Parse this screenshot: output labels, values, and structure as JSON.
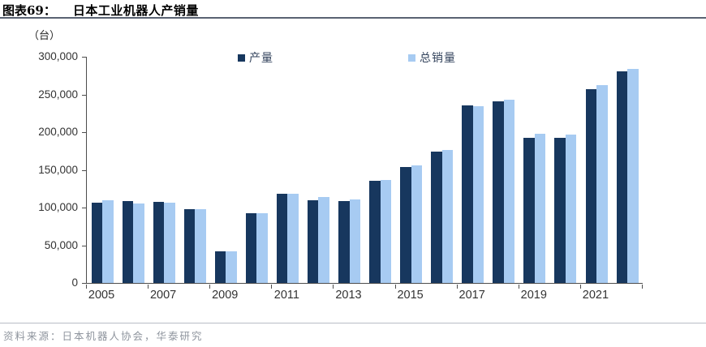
{
  "header": {
    "figure_label": "图表69：",
    "figure_title": "日本工业机器人产销量"
  },
  "chart": {
    "unit_label": "（台）"
  },
  "chart_data": {
    "type": "bar",
    "title": "日本工业机器人产销量",
    "unit": "台",
    "categories": [
      2005,
      2006,
      2007,
      2008,
      2009,
      2010,
      2011,
      2012,
      2013,
      2014,
      2015,
      2016,
      2017,
      2018,
      2019,
      2020,
      2021,
      2022
    ],
    "series": [
      {
        "name": "产量",
        "color": "#17375E",
        "values": [
          107000,
          108500,
          107500,
          98000,
          41500,
          93000,
          118500,
          110000,
          109000,
          136000,
          153500,
          174500,
          235000,
          240500,
          192500,
          193000,
          257000,
          281000
        ]
      },
      {
        "name": "总销量",
        "color": "#A7CBF2",
        "values": [
          109500,
          105000,
          106000,
          97500,
          42000,
          92000,
          118000,
          114000,
          111000,
          137000,
          155500,
          176000,
          234000,
          243000,
          197500,
          197000,
          262000,
          284000
        ]
      }
    ],
    "ylim": [
      0,
      300000
    ],
    "ytick_interval": 50000,
    "ytick_labels": [
      "300,000",
      "250,000",
      "200,000",
      "150,000",
      "100,000",
      "50,000",
      "0"
    ],
    "xtick_labels": [
      "2005",
      "2007",
      "2009",
      "2011",
      "2013",
      "2015",
      "2017",
      "2019",
      "2021"
    ],
    "legend_position": "top-center",
    "grid": false
  },
  "footer": {
    "source": "资料来源：日本机器人协会，华泰研究"
  }
}
